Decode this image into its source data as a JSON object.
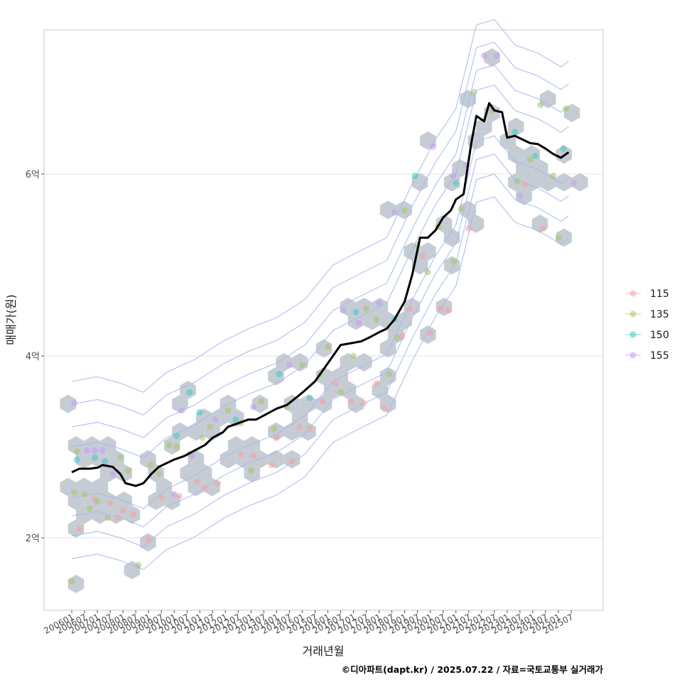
{
  "chart_data": {
    "type": "scatter",
    "xlabel": "거래년월",
    "ylabel": "매매가(원)",
    "caption": "©디아파트(dapt.kr) / 2025.07.22 / 자료=국토교통부 실거래가",
    "x_tick_labels": [
      "200601",
      "200607",
      "200701",
      "200707",
      "200801",
      "200807",
      "200901",
      "200907",
      "201001",
      "201007",
      "201101",
      "201107",
      "201201",
      "201207",
      "201301",
      "201307",
      "201401",
      "201407",
      "201501",
      "201507",
      "201601",
      "201607",
      "201701",
      "201707",
      "201801",
      "201807",
      "201901",
      "201907",
      "202001",
      "202007",
      "202101",
      "202107",
      "202201",
      "202207",
      "202301",
      "202307",
      "202401",
      "202407",
      "202501",
      "202507"
    ],
    "y_unit": "억",
    "y_ticks": [
      2,
      4,
      6
    ],
    "y_tick_labels": [
      "2억",
      "4억",
      "6억"
    ],
    "xlim": [
      2006.0,
      2025.5
    ],
    "ylim": [
      1.3,
      7.7
    ],
    "grid": true,
    "legend_position": "right",
    "legend": [
      {
        "name": "115",
        "color": "#f8a0a0"
      },
      {
        "name": "135",
        "color": "#a9c46a"
      },
      {
        "name": "150",
        "color": "#3fc7c9"
      },
      {
        "name": "155",
        "color": "#c99af6"
      }
    ],
    "hex_color": "#bcc3cc",
    "contour_color": "#a8b8ee",
    "trend_color": "#000000",
    "trend_line": {
      "name": "moving-average",
      "points": [
        [
          2006.0,
          2.72
        ],
        [
          2006.3,
          2.76
        ],
        [
          2006.7,
          2.76
        ],
        [
          2007.0,
          2.77
        ],
        [
          2007.2,
          2.8
        ],
        [
          2007.6,
          2.78
        ],
        [
          2007.9,
          2.7
        ],
        [
          2008.1,
          2.6
        ],
        [
          2008.5,
          2.57
        ],
        [
          2008.8,
          2.6
        ],
        [
          2009.1,
          2.7
        ],
        [
          2009.4,
          2.78
        ],
        [
          2009.7,
          2.82
        ],
        [
          2010.0,
          2.86
        ],
        [
          2010.4,
          2.9
        ],
        [
          2010.8,
          2.96
        ],
        [
          2011.2,
          3.02
        ],
        [
          2011.5,
          3.1
        ],
        [
          2011.9,
          3.16
        ],
        [
          2012.1,
          3.22
        ],
        [
          2012.5,
          3.26
        ],
        [
          2012.9,
          3.3
        ],
        [
          2013.2,
          3.3
        ],
        [
          2013.6,
          3.36
        ],
        [
          2014.0,
          3.42
        ],
        [
          2014.4,
          3.46
        ],
        [
          2014.8,
          3.55
        ],
        [
          2015.1,
          3.62
        ],
        [
          2015.5,
          3.72
        ],
        [
          2015.9,
          3.88
        ],
        [
          2016.2,
          4.0
        ],
        [
          2016.5,
          4.12
        ],
        [
          2016.9,
          4.14
        ],
        [
          2017.3,
          4.16
        ],
        [
          2017.6,
          4.2
        ],
        [
          2018.0,
          4.26
        ],
        [
          2018.3,
          4.3
        ],
        [
          2018.6,
          4.4
        ],
        [
          2019.0,
          4.6
        ],
        [
          2019.3,
          4.9
        ],
        [
          2019.6,
          5.3
        ],
        [
          2019.9,
          5.3
        ],
        [
          2020.2,
          5.38
        ],
        [
          2020.5,
          5.52
        ],
        [
          2020.8,
          5.6
        ],
        [
          2021.0,
          5.72
        ],
        [
          2021.3,
          5.78
        ],
        [
          2021.6,
          6.34
        ],
        [
          2021.8,
          6.64
        ],
        [
          2022.1,
          6.58
        ],
        [
          2022.3,
          6.78
        ],
        [
          2022.5,
          6.7
        ],
        [
          2022.8,
          6.68
        ],
        [
          2023.0,
          6.4
        ],
        [
          2023.3,
          6.42
        ],
        [
          2023.6,
          6.38
        ],
        [
          2023.9,
          6.34
        ],
        [
          2024.2,
          6.33
        ],
        [
          2024.5,
          6.28
        ],
        [
          2024.8,
          6.22
        ],
        [
          2025.1,
          6.18
        ],
        [
          2025.4,
          6.24
        ]
      ]
    },
    "series": [
      {
        "name": "115",
        "points": [
          [
            2006.3,
            2.1
          ],
          [
            2006.9,
            2.42
          ],
          [
            2007.5,
            2.38
          ],
          [
            2007.8,
            2.22
          ],
          [
            2008.0,
            2.3
          ],
          [
            2008.4,
            2.26
          ],
          [
            2009.0,
            1.98
          ],
          [
            2009.5,
            2.44
          ],
          [
            2010.2,
            2.46
          ],
          [
            2010.9,
            2.62
          ],
          [
            2011.2,
            2.55
          ],
          [
            2011.7,
            2.6
          ],
          [
            2012.6,
            2.92
          ],
          [
            2013.1,
            2.9
          ],
          [
            2013.8,
            2.8
          ],
          [
            2014.0,
            3.1
          ],
          [
            2014.6,
            2.84
          ],
          [
            2014.9,
            3.22
          ],
          [
            2015.3,
            3.2
          ],
          [
            2015.8,
            3.5
          ],
          [
            2016.3,
            3.7
          ],
          [
            2016.9,
            3.5
          ],
          [
            2017.4,
            3.48
          ],
          [
            2017.9,
            3.7
          ],
          [
            2018.2,
            3.42
          ],
          [
            2018.9,
            4.22
          ],
          [
            2019.2,
            4.52
          ],
          [
            2019.7,
            5.1
          ],
          [
            2020.0,
            4.25
          ],
          [
            2020.4,
            4.52
          ],
          [
            2020.7,
            4.5
          ],
          [
            2021.5,
            5.4
          ],
          [
            2023.7,
            5.88
          ],
          [
            2024.4,
            5.4
          ]
        ]
      },
      {
        "name": "135",
        "points": [
          [
            2006.1,
            2.5
          ],
          [
            2006.2,
            2.95
          ],
          [
            2006.5,
            2.48
          ],
          [
            2006.7,
            2.32
          ],
          [
            2007.0,
            2.4
          ],
          [
            2007.4,
            2.22
          ],
          [
            2007.9,
            2.88
          ],
          [
            2008.2,
            2.74
          ],
          [
            2008.6,
            1.7
          ],
          [
            2009.1,
            2.8
          ],
          [
            2009.4,
            2.7
          ],
          [
            2009.8,
            3.02
          ],
          [
            2010.1,
            3.0
          ],
          [
            2010.6,
            2.92
          ],
          [
            2011.1,
            3.1
          ],
          [
            2011.4,
            3.22
          ],
          [
            2012.1,
            3.4
          ],
          [
            2012.6,
            3.26
          ],
          [
            2013.0,
            2.74
          ],
          [
            2013.4,
            3.5
          ],
          [
            2013.9,
            3.2
          ],
          [
            2014.4,
            3.44
          ],
          [
            2015.0,
            3.9
          ],
          [
            2015.7,
            3.8
          ],
          [
            2016.0,
            4.1
          ],
          [
            2016.5,
            3.6
          ],
          [
            2017.0,
            4.0
          ],
          [
            2017.5,
            4.52
          ],
          [
            2017.9,
            4.4
          ],
          [
            2018.4,
            3.8
          ],
          [
            2018.7,
            4.2
          ],
          [
            2019.0,
            5.6
          ],
          [
            2019.5,
            5.22
          ],
          [
            2019.9,
            4.92
          ],
          [
            2020.3,
            5.42
          ],
          [
            2020.9,
            5.04
          ],
          [
            2021.2,
            5.62
          ],
          [
            2021.7,
            6.9
          ],
          [
            2022.4,
            6.7
          ],
          [
            2023.4,
            5.92
          ],
          [
            2023.9,
            6.16
          ],
          [
            2024.3,
            6.76
          ],
          [
            2024.8,
            5.98
          ],
          [
            2025.0,
            5.3
          ],
          [
            2025.3,
            6.72
          ],
          [
            2006.0,
            1.52
          ]
        ]
      },
      {
        "name": "150",
        "points": [
          [
            2006.2,
            2.86
          ],
          [
            2006.9,
            2.88
          ],
          [
            2007.3,
            2.84
          ],
          [
            2010.1,
            3.12
          ],
          [
            2010.6,
            3.6
          ],
          [
            2011.0,
            3.38
          ],
          [
            2012.4,
            3.3
          ],
          [
            2014.1,
            3.8
          ],
          [
            2015.3,
            3.54
          ],
          [
            2017.1,
            4.48
          ],
          [
            2018.6,
            4.4
          ],
          [
            2019.4,
            5.98
          ],
          [
            2021.0,
            5.9
          ],
          [
            2023.3,
            6.46
          ],
          [
            2024.1,
            6.2
          ],
          [
            2025.2,
            6.28
          ]
        ]
      },
      {
        "name": "155",
        "points": [
          [
            2006.1,
            3.48
          ],
          [
            2006.6,
            2.96
          ],
          [
            2006.9,
            2.96
          ],
          [
            2007.2,
            2.96
          ],
          [
            2007.6,
            2.7
          ],
          [
            2010.0,
            2.48
          ],
          [
            2010.3,
            3.4
          ],
          [
            2010.7,
            2.9
          ],
          [
            2011.6,
            3.3
          ],
          [
            2013.1,
            3.44
          ],
          [
            2014.5,
            3.9
          ],
          [
            2016.6,
            4.5
          ],
          [
            2017.2,
            4.36
          ],
          [
            2018.0,
            4.58
          ],
          [
            2018.6,
            5.58
          ],
          [
            2020.1,
            6.3
          ],
          [
            2020.9,
            5.98
          ],
          [
            2021.4,
            6.1
          ],
          [
            2022.1,
            7.3
          ],
          [
            2022.6,
            7.3
          ],
          [
            2023.5,
            5.76
          ],
          [
            2025.6,
            5.9
          ]
        ]
      }
    ]
  }
}
